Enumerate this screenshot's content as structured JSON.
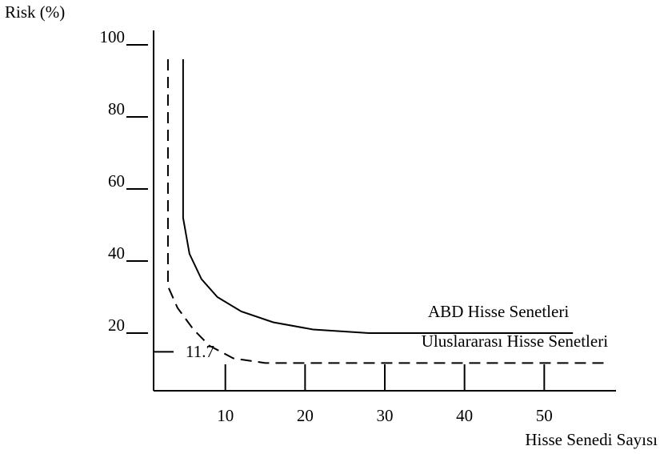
{
  "chart_data": {
    "type": "line",
    "ylabel": "Risk (%)",
    "xlabel": "Hisse Senedi Sayısı",
    "xlim": [
      1,
      59
    ],
    "xticks": [
      10,
      20,
      30,
      40,
      50
    ],
    "ylim": [
      4,
      104
    ],
    "yticks": [
      20,
      40,
      60,
      80,
      100
    ],
    "reference": 11.7,
    "series": [
      {
        "name": "ABD Hisse Senetleri",
        "color": "#000000",
        "dash": false,
        "x": [
          4.7,
          4.7,
          5.5,
          7,
          9,
          12,
          16,
          21,
          28,
          53.6
        ],
        "values": [
          96,
          52,
          42,
          35,
          30,
          26,
          23,
          21,
          20,
          20
        ]
      },
      {
        "name": "Uluslararası Hisse Senetleri",
        "color": "#000000",
        "dash": true,
        "x": [
          2.8,
          2.8,
          4,
          6,
          8,
          11,
          15,
          57.5
        ],
        "values": [
          96,
          33,
          27,
          21,
          16.5,
          13,
          11.7,
          11.7
        ]
      }
    ]
  }
}
